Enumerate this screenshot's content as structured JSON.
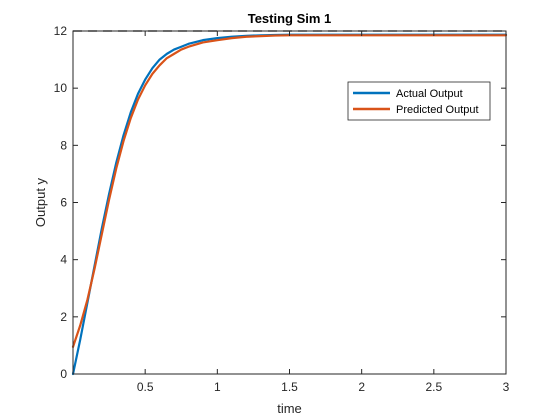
{
  "chart_data": {
    "type": "line",
    "title": "Testing Sim 1",
    "xlabel": "time",
    "ylabel": "Output y",
    "xlim": [
      0,
      3
    ],
    "ylim": [
      0,
      12
    ],
    "x_ticks": [
      0.5,
      1,
      1.5,
      2,
      2.5,
      3
    ],
    "x_tick_labels": [
      "0.5",
      "1",
      "1.5",
      "2",
      "2.5",
      "3"
    ],
    "y_ticks": [
      0,
      2,
      4,
      6,
      8,
      10,
      12
    ],
    "y_tick_labels": [
      "0",
      "2",
      "4",
      "6",
      "8",
      "10",
      "12"
    ],
    "grid": false,
    "legend_position": "top-right",
    "reference_line": {
      "y": 12,
      "color": "#555555",
      "style": "dashed"
    },
    "series": [
      {
        "name": "Actual Output",
        "color": "#0072BD",
        "x": [
          0,
          0.05,
          0.1,
          0.15,
          0.2,
          0.25,
          0.3,
          0.35,
          0.4,
          0.45,
          0.5,
          0.55,
          0.6,
          0.65,
          0.7,
          0.75,
          0.8,
          0.9,
          1,
          1.1,
          1.2,
          1.3,
          1.4,
          1.5,
          1.75,
          2,
          2.25,
          2.5,
          2.75,
          3
        ],
        "y": [
          0,
          1.2,
          2.5,
          3.8,
          5.1,
          6.3,
          7.4,
          8.35,
          9.15,
          9.8,
          10.3,
          10.7,
          11.0,
          11.2,
          11.35,
          11.45,
          11.55,
          11.68,
          11.75,
          11.8,
          11.83,
          11.85,
          11.86,
          11.87,
          11.87,
          11.87,
          11.87,
          11.87,
          11.87,
          11.87
        ]
      },
      {
        "name": "Predicted Output",
        "color": "#D95319",
        "x": [
          0,
          0.05,
          0.1,
          0.15,
          0.2,
          0.25,
          0.3,
          0.35,
          0.4,
          0.45,
          0.5,
          0.55,
          0.6,
          0.65,
          0.7,
          0.75,
          0.8,
          0.9,
          1,
          1.1,
          1.2,
          1.3,
          1.4,
          1.5,
          1.75,
          2,
          2.25,
          2.5,
          2.75,
          3
        ],
        "y": [
          0.95,
          1.7,
          2.6,
          3.7,
          4.9,
          6.1,
          7.2,
          8.15,
          8.95,
          9.6,
          10.1,
          10.5,
          10.8,
          11.05,
          11.2,
          11.35,
          11.45,
          11.6,
          11.68,
          11.75,
          11.8,
          11.82,
          11.84,
          11.85,
          11.85,
          11.85,
          11.85,
          11.85,
          11.85,
          11.85
        ]
      }
    ]
  }
}
